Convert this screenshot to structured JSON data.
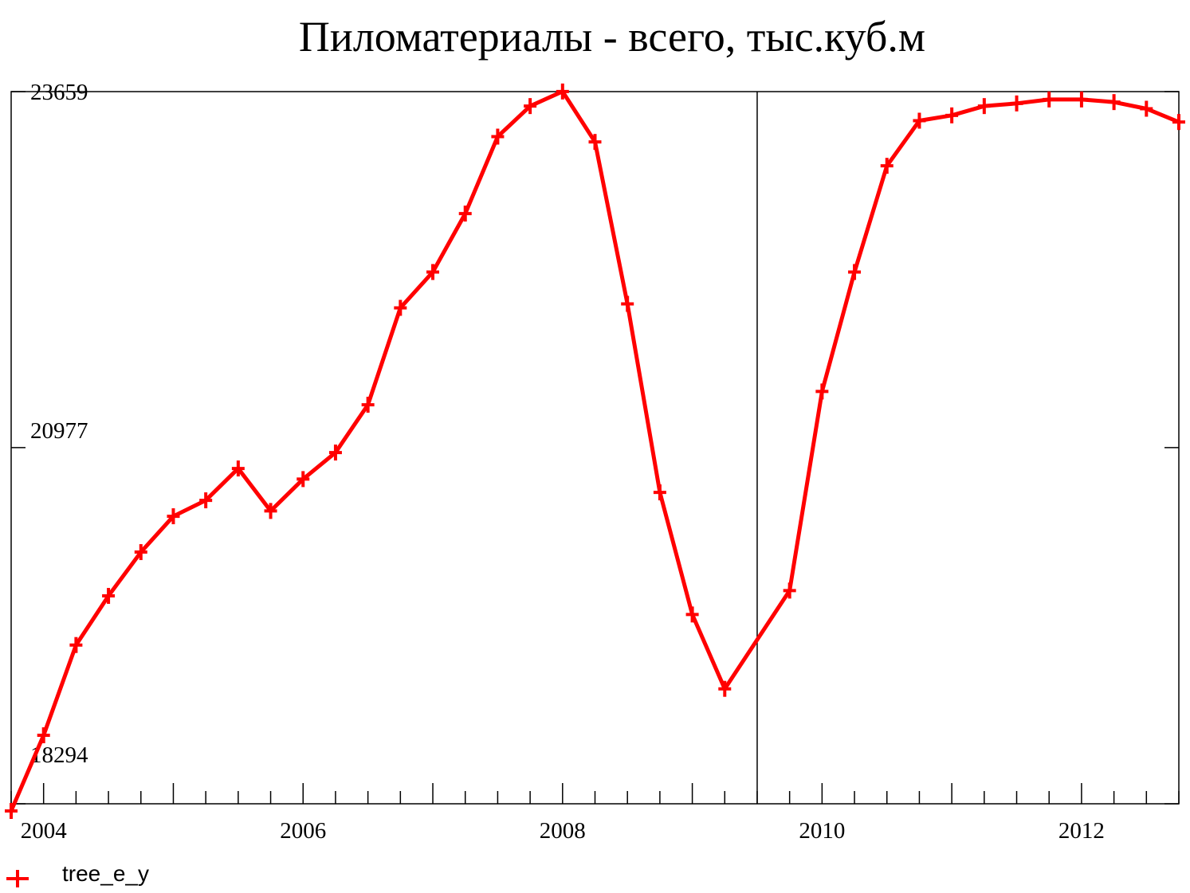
{
  "chart_data": {
    "type": "line",
    "title": "Пиломатериалы - всего, тыс.куб.м",
    "xlabel": "",
    "ylabel": "",
    "xlim": [
      2003.75,
      2012.75
    ],
    "ylim": [
      18294,
      23659
    ],
    "y_ticks": [
      18294,
      20977,
      23659
    ],
    "x_ticks": [
      2004,
      2006,
      2008,
      2010,
      2012
    ],
    "x_minor_step": 0.25,
    "vertical_marker": 2009.5,
    "grid": false,
    "legend": "bottom-left",
    "series": [
      {
        "name": "tree_e_y",
        "color": "#ff0000",
        "x": [
          2003.75,
          2004.0,
          2004.25,
          2004.5,
          2004.75,
          2005.0,
          2005.25,
          2005.5,
          2005.75,
          2006.0,
          2006.25,
          2006.5,
          2006.75,
          2007.0,
          2007.25,
          2007.5,
          2007.75,
          2008.0,
          2008.25,
          2008.5,
          2008.75,
          2009.0,
          2009.25,
          2009.5,
          2009.75,
          2010.0,
          2010.25,
          2010.5,
          2010.75,
          2011.0,
          2011.25,
          2011.5,
          2011.75,
          2012.0,
          2012.25,
          2012.5,
          2012.75
        ],
        "values": [
          18240,
          18810,
          19490,
          19860,
          20190,
          20460,
          20580,
          20820,
          20500,
          20740,
          20940,
          21300,
          22030,
          22300,
          22740,
          23320,
          23550,
          23660,
          23280,
          22060,
          20640,
          19720,
          19160,
          null,
          19900,
          21400,
          22300,
          23100,
          23440,
          23480,
          23550,
          23570,
          23600,
          23600,
          23580,
          23530,
          23430
        ]
      }
    ]
  }
}
